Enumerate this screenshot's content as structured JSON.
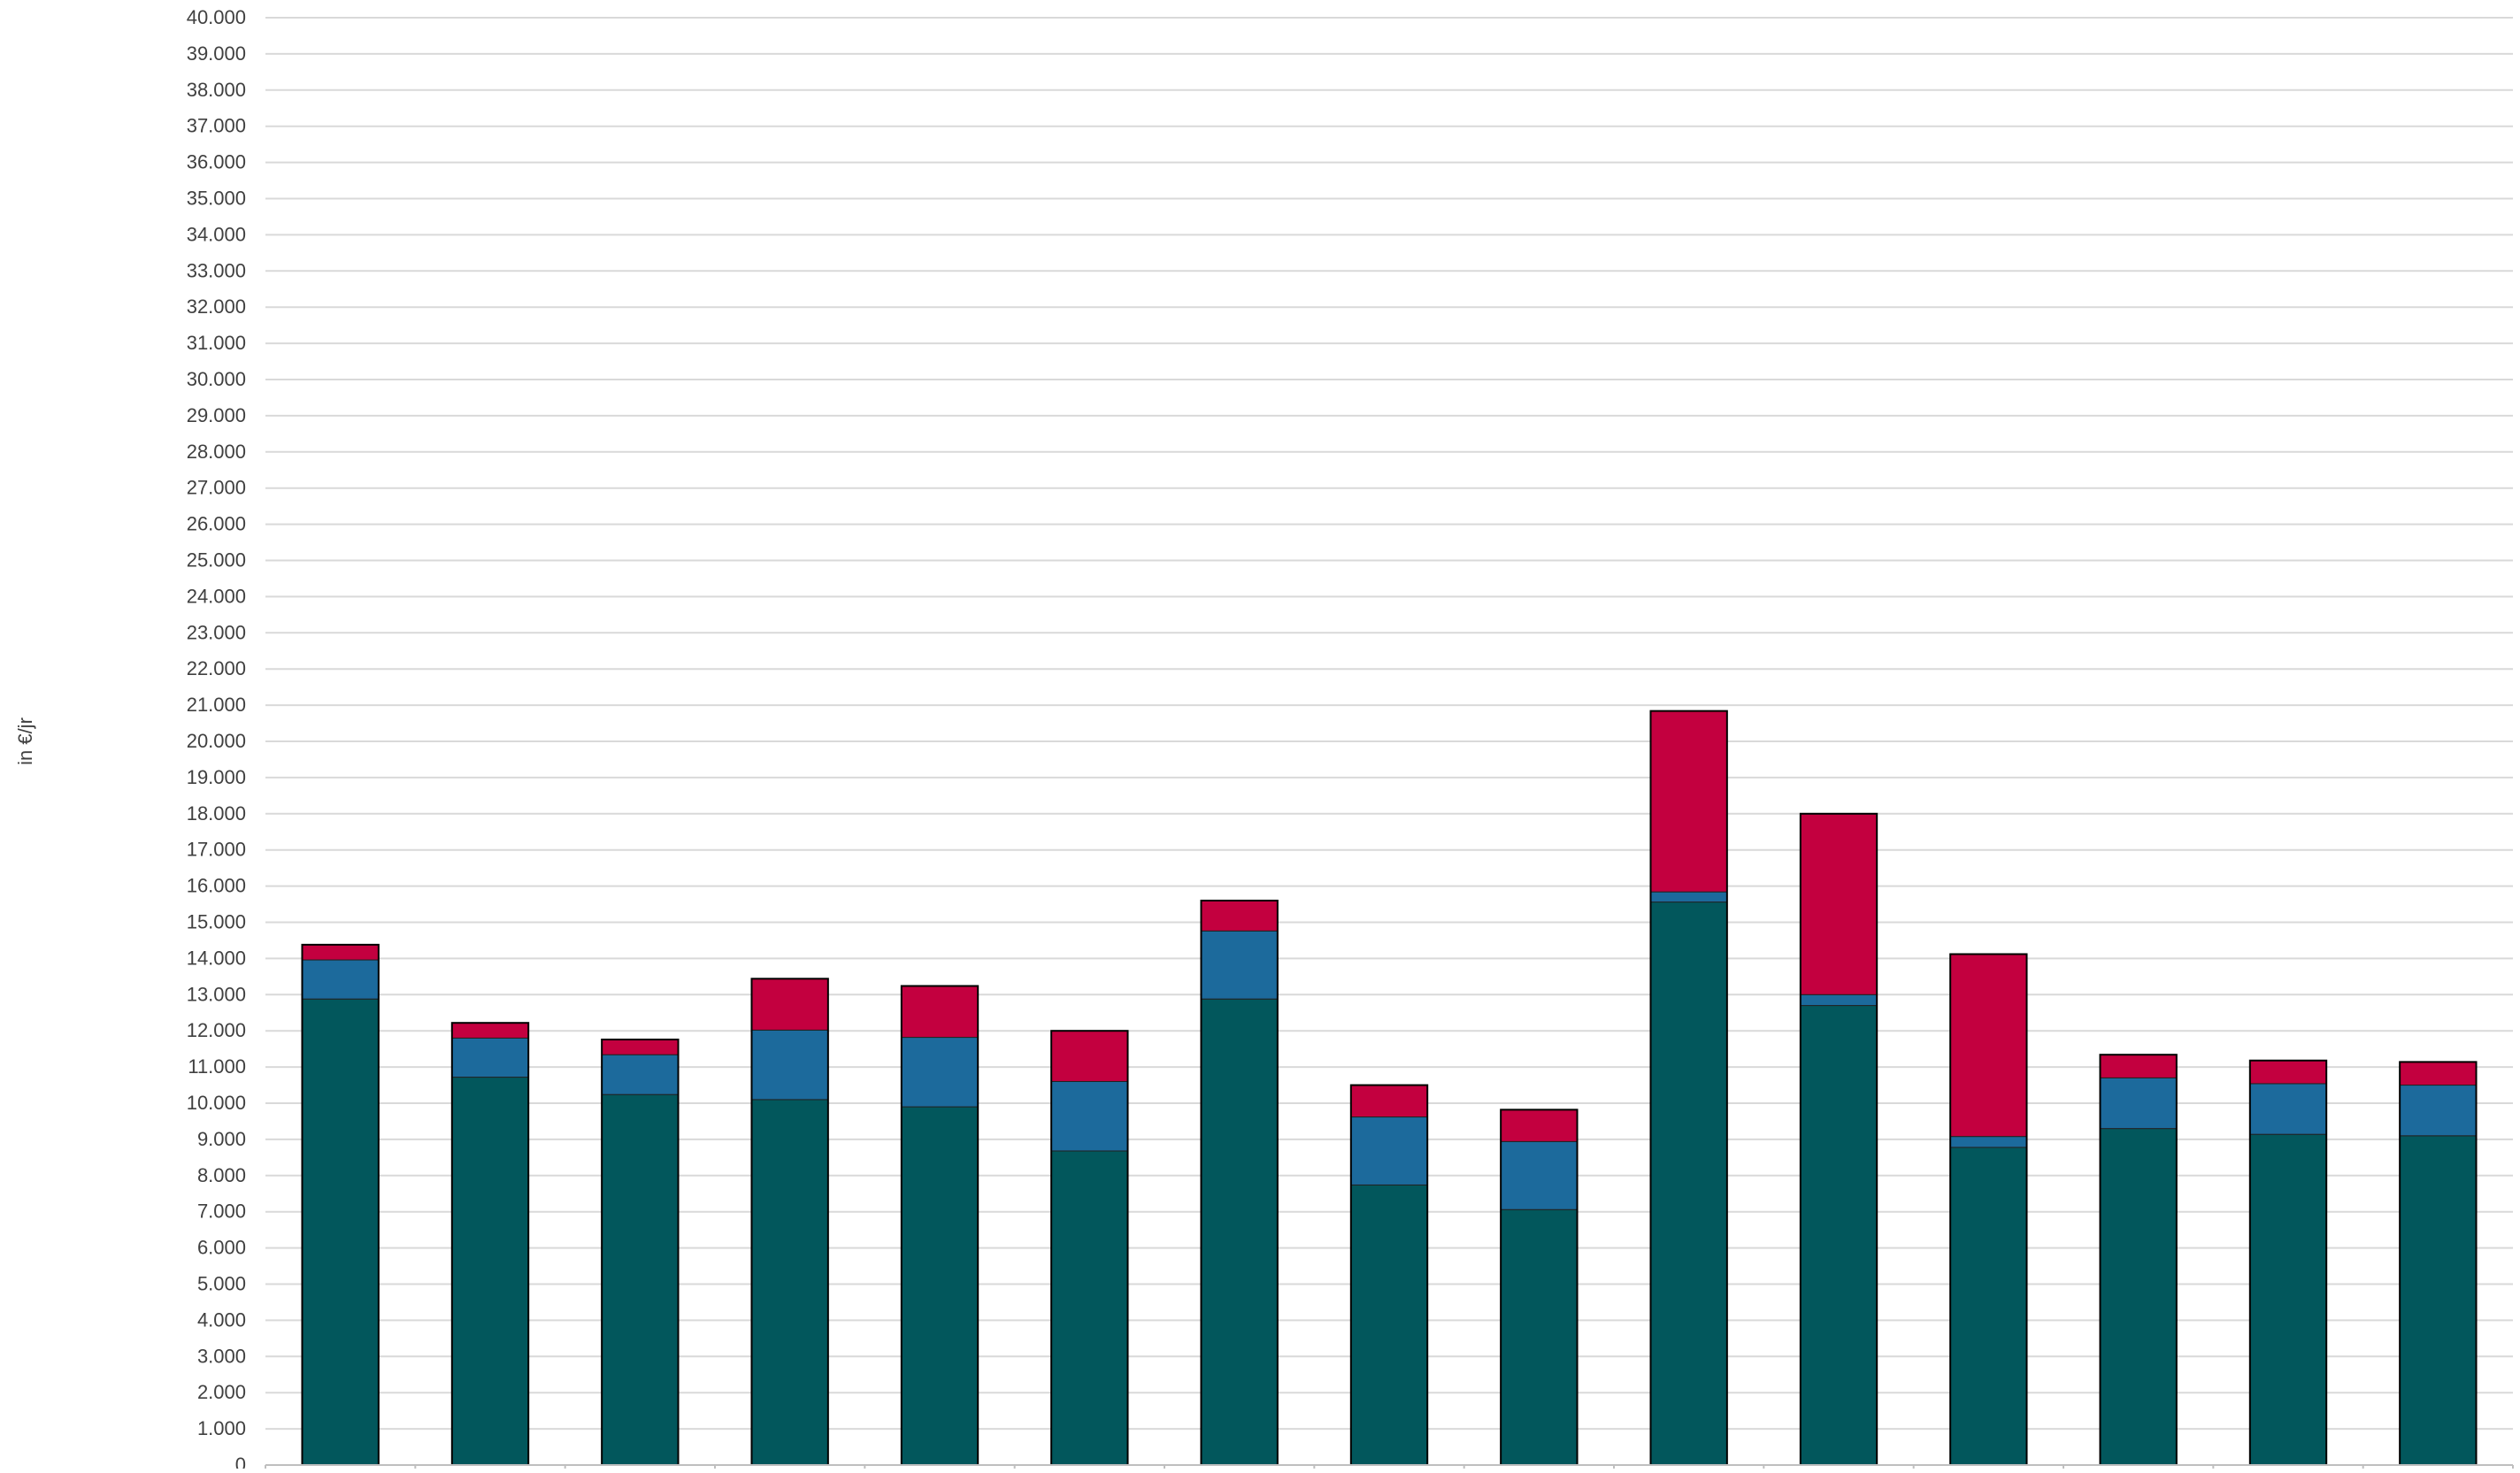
{
  "chart_data": {
    "type": "bar",
    "stacked": true,
    "title": "",
    "xlabel": "",
    "ylabel": "in €/jr",
    "ylim": [
      0,
      40000
    ],
    "ytick_step": 1000,
    "ytick_labels": [
      "0",
      "1.000",
      "2.000",
      "3.000",
      "4.000",
      "5.000",
      "6.000",
      "7.000",
      "8.000",
      "9.000",
      "10.000",
      "11.000",
      "12.000",
      "13.000",
      "14.000",
      "15.000",
      "16.000",
      "17.000",
      "18.000",
      "19.000",
      "20.000",
      "21.000",
      "22.000",
      "23.000",
      "24.000",
      "25.000",
      "26.000",
      "27.000",
      "28.000",
      "29.000",
      "30.000",
      "31.000",
      "32.000",
      "33.000",
      "34.000",
      "35.000",
      "36.000",
      "37.000",
      "38.000",
      "39.000",
      "40.000"
    ],
    "categories": [
      "",
      "",
      "",
      "",
      "",
      "",
      "",
      "",
      "",
      "",
      "",
      "",
      "",
      "",
      ""
    ],
    "grid": true,
    "legend": "none",
    "series": [
      {
        "color": "#02575C",
        "values": [
          12880,
          10720,
          10240,
          10100,
          9900,
          8680,
          12880,
          7740,
          7060,
          15560,
          12700,
          8780,
          9300,
          9140,
          9100
        ]
      },
      {
        "color": "#1C6A9C",
        "values": [
          1080,
          1080,
          1100,
          1920,
          1920,
          1920,
          1880,
          1880,
          1880,
          280,
          300,
          300,
          1400,
          1400,
          1400
        ]
      },
      {
        "color": "#C3003F",
        "values": [
          420,
          420,
          420,
          1420,
          1420,
          1400,
          840,
          880,
          880,
          5000,
          5000,
          5040,
          640,
          640,
          640
        ]
      }
    ]
  }
}
